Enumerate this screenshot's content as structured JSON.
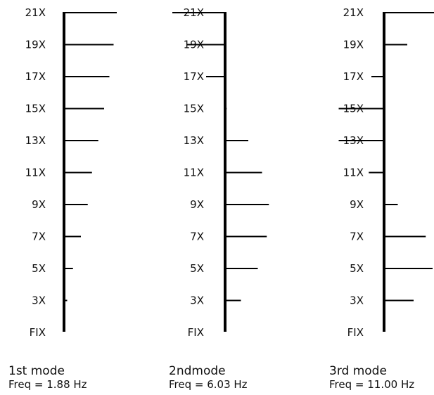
{
  "levels": [
    "21X",
    "19X",
    "17X",
    "15X",
    "13X",
    "11X",
    "9X",
    "7X",
    "5X",
    "3X",
    "FIX"
  ],
  "modes": [
    {
      "name": "1st mode",
      "freq": "Freq = 1.88 Hz",
      "shape": [
        1.0,
        0.94,
        0.86,
        0.76,
        0.65,
        0.53,
        0.45,
        0.32,
        0.17,
        0.06,
        0.0
      ]
    },
    {
      "name": "2ndmode",
      "freq": "Freq = 6.03 Hz",
      "shape": [
        -1.0,
        -0.72,
        -0.36,
        0.03,
        0.44,
        0.7,
        0.83,
        0.79,
        0.62,
        0.3,
        0.0
      ]
    },
    {
      "name": "3rd mode",
      "freq": "Freq = 11.00 Hz",
      "shape": [
        0.95,
        0.44,
        -0.24,
        -0.86,
        -0.86,
        -0.29,
        0.26,
        0.79,
        0.92,
        0.56,
        0.0
      ]
    }
  ]
}
